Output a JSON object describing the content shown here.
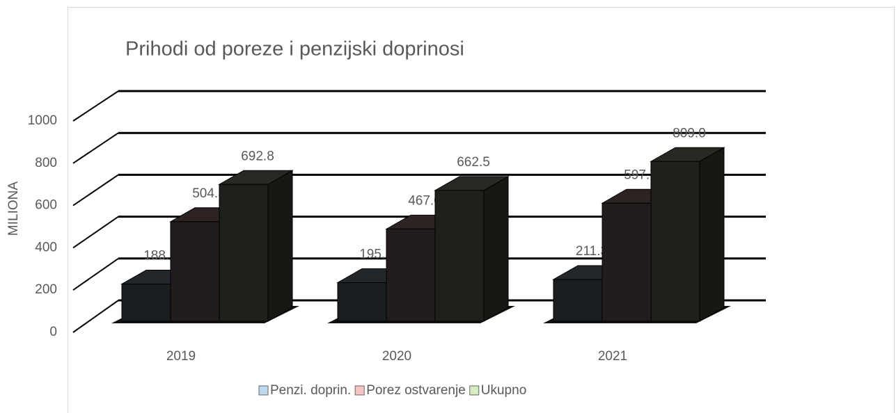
{
  "chart_data": {
    "type": "bar3d",
    "title": "Prihodi od poreze i penzijski doprinosi",
    "y_label": "MILIONA",
    "categories": [
      "2019",
      "2020",
      "2021"
    ],
    "series": [
      {
        "name": "Penzi. doprin.",
        "color": "#bdd7ee",
        "values": [
          188.5,
          195.5,
          211.3
        ]
      },
      {
        "name": "Porez ostvarenje",
        "color": "#f8c5c5",
        "values": [
          504.3,
          467.0,
          597.7
        ],
        "value_labels": [
          "504.3",
          "467.0",
          "597.7"
        ]
      },
      {
        "name": "Ukupno",
        "color": "#d5ecc2",
        "values": [
          692.8,
          662.5,
          809.0
        ],
        "value_labels": [
          "692.8",
          "662.5",
          "809.0"
        ]
      }
    ],
    "ylim": [
      0,
      1000
    ],
    "yticks": [
      0,
      200,
      400,
      600,
      800,
      1000
    ],
    "grid": true,
    "legend": "bottom"
  }
}
